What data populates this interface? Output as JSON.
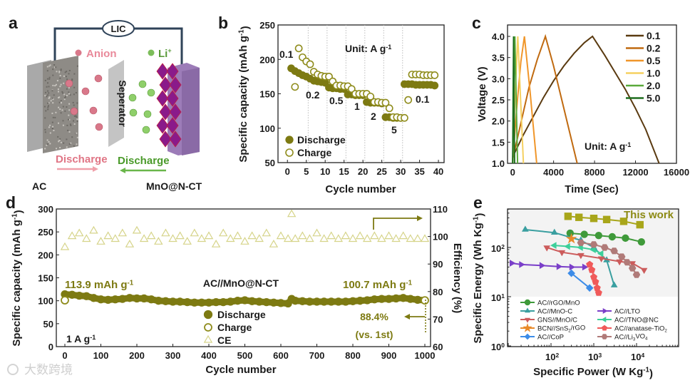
{
  "panel_labels": [
    "a",
    "b",
    "c",
    "d",
    "e"
  ],
  "watermark": "大数跨境",
  "panel_a": {
    "lic": "LIC",
    "anion": "Anion",
    "li": "Li",
    "li_sup": "+",
    "separator": "Seperator",
    "discharge_left": "Discharge",
    "discharge_right": "Discharge",
    "left_electrode": "AC",
    "right_electrode": "MnO@N-CT",
    "colors": {
      "anion": "#d9788a",
      "lithium": "#7cbd5a",
      "wire": "#2f4359",
      "crystal": "#8a1a8a",
      "electrode": "#9c7cb8"
    }
  },
  "chart_data": [
    {
      "type": "scatter",
      "xlabel": "Cycle number",
      "ylabel": "Specific capacity (mAh g",
      "ylabel_sup": "-1",
      "ylabel_end": ")",
      "xlim": [
        -2.5,
        41.5
      ],
      "ylim": [
        50,
        250
      ],
      "xticks": [
        0,
        5,
        10,
        15,
        20,
        25,
        30,
        35,
        40
      ],
      "yticks": [
        50,
        100,
        150,
        200,
        250
      ],
      "dividers": [
        5.5,
        10.5,
        15.5,
        20.5,
        25.5,
        30.5
      ],
      "unit": "Unit: A g",
      "unit_sup": "-1",
      "rate_labels": [
        "0.1",
        "0.2",
        "0.5",
        "1",
        "2",
        "5",
        "0.1"
      ],
      "legend": "bottom-left",
      "series": [
        {
          "name": "Discharge",
          "color": "#7d7a12",
          "filled": true,
          "x": [
            1,
            2,
            3,
            4,
            5,
            6,
            7,
            8,
            9,
            10,
            11,
            12,
            13,
            14,
            15,
            16,
            17,
            18,
            19,
            20,
            21,
            22,
            23,
            24,
            25,
            26,
            27,
            28,
            29,
            30,
            31,
            32,
            33,
            34,
            35,
            36,
            37,
            38,
            39
          ],
          "y": [
            187,
            183,
            180,
            177,
            175,
            172,
            169,
            168,
            167,
            166,
            159,
            158,
            158,
            157,
            157,
            149,
            149,
            148,
            148,
            148,
            138,
            137,
            137,
            137,
            136,
            116,
            116,
            115,
            115,
            115,
            164,
            164,
            164,
            163,
            163,
            163,
            163,
            163,
            162
          ]
        },
        {
          "name": "Charge",
          "color": "#8f8c1c",
          "filled": false,
          "x": [
            2,
            3,
            4,
            5,
            6,
            7,
            8,
            9,
            10,
            11,
            12,
            13,
            14,
            15,
            16,
            17,
            18,
            19,
            20,
            21,
            22,
            23,
            24,
            25,
            26,
            27,
            28,
            29,
            30,
            31,
            32,
            33,
            34,
            35,
            36,
            37,
            38,
            39
          ],
          "y": [
            160,
            216,
            203,
            197,
            193,
            182,
            178,
            176,
            175,
            175,
            168,
            162,
            162,
            161,
            161,
            157,
            150,
            150,
            150,
            150,
            146,
            138,
            138,
            137,
            137,
            129,
            116,
            116,
            115,
            115,
            141,
            178,
            178,
            178,
            177,
            177,
            177,
            177
          ]
        }
      ]
    },
    {
      "type": "line",
      "xlabel": "Time (Sec)",
      "ylabel": "Voltage (V)",
      "xlim": [
        -500,
        16000
      ],
      "ylim": [
        1.0,
        4.27
      ],
      "xticks": [
        0,
        4000,
        8000,
        12000,
        16000
      ],
      "yticks": [
        "1.0",
        "1.5",
        "2.0",
        "2.5",
        "3.0",
        "3.5",
        "4.0"
      ],
      "unit": "Unit: A g",
      "unit_sup": "-1",
      "legend": "top-right",
      "series": [
        {
          "name": "0.1",
          "color": "#5a3a10",
          "points": [
            [
              0,
              1.15
            ],
            [
              1000,
              1.65
            ],
            [
              2000,
              2.1
            ],
            [
              3000,
              2.55
            ],
            [
              4000,
              2.95
            ],
            [
              5000,
              3.3
            ],
            [
              6000,
              3.6
            ],
            [
              7000,
              3.85
            ],
            [
              7800,
              4.0
            ],
            [
              9000,
              3.55
            ],
            [
              10000,
              3.15
            ],
            [
              11000,
              2.75
            ],
            [
              12000,
              2.3
            ],
            [
              13000,
              1.8
            ],
            [
              14300,
              1.0
            ]
          ]
        },
        {
          "name": "0.2",
          "color": "#c06a10",
          "points": [
            [
              0,
              1.1
            ],
            [
              800,
              1.95
            ],
            [
              1600,
              2.8
            ],
            [
              2400,
              3.45
            ],
            [
              3200,
              4.0
            ],
            [
              4000,
              3.3
            ],
            [
              5000,
              2.3
            ],
            [
              6300,
              1.0
            ]
          ]
        },
        {
          "name": "0.5",
          "color": "#f0962a",
          "points": [
            [
              0,
              1.05
            ],
            [
              400,
              2.3
            ],
            [
              800,
              3.4
            ],
            [
              1150,
              4.0
            ],
            [
              1700,
              2.7
            ],
            [
              2350,
              1.0
            ]
          ]
        },
        {
          "name": "1.0",
          "color": "#f5d060",
          "points": [
            [
              0,
              1.0
            ],
            [
              250,
              2.7
            ],
            [
              500,
              4.0
            ],
            [
              1050,
              1.0
            ]
          ]
        },
        {
          "name": "2.0",
          "color": "#5aaa3a",
          "points": [
            [
              0,
              1.0
            ],
            [
              220,
              4.0
            ],
            [
              480,
              1.0
            ]
          ]
        },
        {
          "name": "5.0",
          "color": "#1f6e1f",
          "points": [
            [
              0,
              1.0
            ],
            [
              90,
              4.0
            ],
            [
              190,
              1.0
            ]
          ]
        }
      ]
    },
    {
      "type": "scatter",
      "xlabel": "Cycle number",
      "ylabel": "Specific capacity (mAh g",
      "ylabel_sup": "-1",
      "ylabel_end": ")",
      "y2label": "Efficiency (%)",
      "xlim": [
        -25,
        1020
      ],
      "ylim": [
        0,
        300
      ],
      "y2lim": [
        60,
        110
      ],
      "xticks": [
        0,
        100,
        200,
        300,
        400,
        500,
        600,
        700,
        800,
        900,
        1000
      ],
      "yticks": [
        0,
        50,
        100,
        150,
        200,
        250,
        300
      ],
      "y2ticks": [
        60,
        70,
        80,
        90,
        100,
        110
      ],
      "annotations": {
        "first": "113.9 mAh g",
        "first_sup": "-1",
        "last": "100.7 mAh g",
        "last_sup": "-1",
        "device": "AC//MnO@N-CT",
        "retention": "88.4%",
        "retention_note": "(vs. 1st)",
        "rate": "1 A g",
        "rate_sup": "-1"
      },
      "legend": "bottom-center",
      "x": [
        0,
        20,
        40,
        60,
        80,
        100,
        120,
        140,
        160,
        180,
        200,
        220,
        240,
        260,
        280,
        300,
        320,
        340,
        360,
        380,
        400,
        420,
        440,
        460,
        480,
        500,
        520,
        540,
        560,
        580,
        600,
        620,
        630,
        640,
        660,
        680,
        700,
        720,
        740,
        760,
        780,
        800,
        820,
        840,
        860,
        880,
        900,
        920,
        940,
        960,
        980,
        1000
      ],
      "series": [
        {
          "name": "Discharge",
          "color": "#7d7a12",
          "axis": "left",
          "y": [
            114,
            113,
            111,
            110,
            106,
            103,
            102,
            103,
            104,
            106,
            105,
            105,
            103,
            100,
            99,
            98,
            98,
            97,
            96,
            96,
            96,
            97,
            97,
            98,
            100,
            101,
            99,
            98,
            97,
            96,
            95,
            94,
            104,
            100,
            99,
            98,
            98,
            98,
            98,
            98,
            98,
            99,
            100,
            101,
            103,
            104,
            104,
            105,
            106,
            104,
            102,
            101
          ]
        },
        {
          "name": "Charge",
          "color": "#8f8c1c",
          "axis": "left",
          "x": [
            0,
            1000
          ],
          "y": [
            101,
            100.7
          ]
        },
        {
          "name": "CE",
          "color": "#d6d48a",
          "axis": "right",
          "y": [
            96,
            100,
            101,
            99,
            102,
            98,
            100,
            99,
            101,
            97,
            102,
            99,
            100,
            98,
            101,
            99,
            100,
            98,
            101,
            99,
            100,
            97,
            101,
            99,
            100,
            98,
            100,
            99,
            101,
            97,
            100,
            99,
            108,
            99,
            100,
            99,
            101,
            99,
            100,
            99,
            100,
            99,
            100,
            99,
            100,
            99,
            100,
            99,
            100,
            99,
            99,
            99
          ]
        }
      ]
    },
    {
      "type": "line",
      "xscale": "log",
      "yscale": "log",
      "xlabel": "Specific Power (W Kg",
      "xlabel_sup": "-1",
      "xlabel_end": ")",
      "ylabel": "Specific Energy (Wh Kg",
      "ylabel_sup": "-1",
      "ylabel_end": ")",
      "xlim": [
        9.5,
        100000
      ],
      "ylim": [
        1,
        600
      ],
      "tick_base": "10",
      "xticks_exp": [
        "2",
        "3",
        "4"
      ],
      "yticks_exp": [
        "0",
        "1",
        "2"
      ],
      "highlight_label": "This work",
      "legend": "bottom-left",
      "series": [
        {
          "name": "This work",
          "label_parts": [],
          "color": "#a8a61a",
          "marker": "square",
          "points": [
            [
              250,
              430
            ],
            [
              450,
              410
            ],
            [
              1000,
              390
            ],
            [
              2000,
              370
            ],
            [
              5000,
              340
            ],
            [
              12000,
              290
            ]
          ]
        },
        {
          "name": "AC//rGO/MnO",
          "label_parts": [
            "AC//rGO/MnO"
          ],
          "color": "#3f9a3a",
          "marker": "circle",
          "points": [
            [
              280,
              195
            ],
            [
              600,
              185
            ],
            [
              1300,
              175
            ],
            [
              2700,
              165
            ],
            [
              5500,
              155
            ],
            [
              13000,
              130
            ]
          ]
        },
        {
          "name": "AC//MnO-C",
          "label_parts": [
            "AC//MnO-C"
          ],
          "color": "#3a9fa0",
          "marker": "tri-up",
          "points": [
            [
              25,
              230
            ],
            [
              120,
              200
            ],
            [
              500,
              140
            ],
            [
              1000,
              100
            ],
            [
              2000,
              55
            ],
            [
              3000,
              17
            ]
          ]
        },
        {
          "name": "GNS//MnO/C",
          "label_parts": [
            "GNS//MnO/C"
          ],
          "color": "#cc5c5c",
          "marker": "tri-down",
          "points": [
            [
              80,
              100
            ],
            [
              180,
              80
            ],
            [
              500,
              70
            ],
            [
              1500,
              60
            ],
            [
              4000,
              52
            ],
            [
              8000,
              48
            ],
            [
              15000,
              35
            ]
          ]
        },
        {
          "name": "BCN//SnS2/rGO",
          "label_parts": [
            "BCN//SnS",
            "2",
            "/rGO"
          ],
          "color": "#e88a2a",
          "marker": "star",
          "points": [
            [
              300,
              150
            ]
          ]
        },
        {
          "name": "AC//CoP",
          "label_parts": [
            "AC//CoP"
          ],
          "color": "#3c8ce8",
          "marker": "diamond",
          "points": [
            [
              300,
              30
            ],
            [
              800,
              15
            ]
          ]
        },
        {
          "name": "AC//LTO",
          "label_parts": [
            "AC//LTO"
          ],
          "color": "#7a3fc9",
          "marker": "tri-right",
          "points": [
            [
              12,
              48
            ],
            [
              20,
              45
            ],
            [
              60,
              43
            ],
            [
              150,
              41
            ],
            [
              300,
              40
            ],
            [
              600,
              40
            ]
          ]
        },
        {
          "name": "AC//TNO@NC",
          "label_parts": [
            "AC//TNO@NC"
          ],
          "color": "#3ccf9a",
          "marker": "tri-left",
          "points": [
            [
              120,
              110
            ],
            [
              250,
              105
            ],
            [
              500,
              100
            ],
            [
              1000,
              90
            ],
            [
              1500,
              75
            ]
          ]
        },
        {
          "name": "AC//anatase-TiO2",
          "label_parts": [
            "AC//anatase-TiO",
            "2"
          ],
          "color": "#f05a5a",
          "marker": "pentagon",
          "points": [
            [
              800,
              45
            ],
            [
              900,
              35
            ],
            [
              1000,
              25
            ],
            [
              1100,
              20
            ],
            [
              1200,
              15
            ],
            [
              1300,
              12
            ]
          ]
        },
        {
          "name": "AC//Li3VO4",
          "label_parts": [
            "AC//Li",
            "3",
            "VO",
            "4"
          ],
          "color": "#b07a78",
          "marker": "hexagon",
          "points": [
            [
              500,
              125
            ],
            [
              1000,
              115
            ],
            [
              1800,
              100
            ],
            [
              3000,
              85
            ],
            [
              4500,
              65
            ],
            [
              6000,
              50
            ],
            [
              8000,
              38
            ],
            [
              10000,
              28
            ]
          ]
        }
      ]
    }
  ]
}
